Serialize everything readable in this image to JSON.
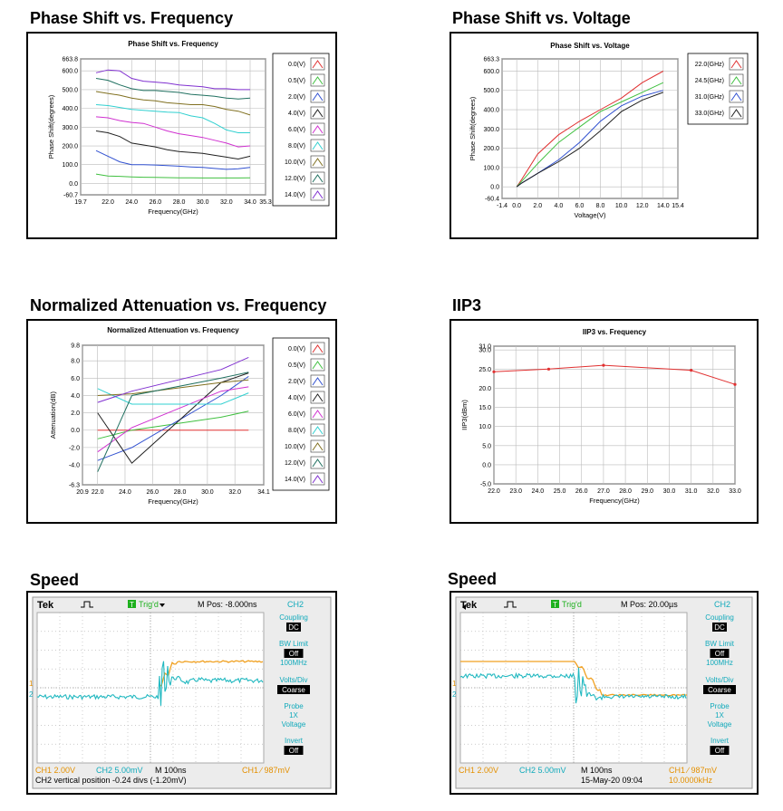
{
  "sections": {
    "phase_freq_title": "Phase Shift vs. Frequency",
    "phase_volt_title": "Phase Shift vs. Voltage",
    "atten_title": "Normalized Attenuation vs. Frequency",
    "iip3_title": "IIP3",
    "speed1_title": "Speed",
    "speed2_title": "Speed"
  },
  "chart_data": [
    {
      "id": "phase_freq",
      "type": "line",
      "title": "Phase Shift vs. Frequency",
      "xlabel": "Frequency(GHz)",
      "ylabel": "Phase Shift(degrees)",
      "xlim": [
        19.7,
        35.3
      ],
      "ylim": [
        -60.7,
        663.8
      ],
      "xticks": [
        "19.7",
        "22.0",
        "24.0",
        "26.0",
        "28.0",
        "30.0",
        "32.0",
        "34.0",
        "35.3"
      ],
      "yticks": [
        "663.8",
        "600.0",
        "500.0",
        "400.0",
        "300.0",
        "200.0",
        "100.0",
        "0.0",
        "-60.7"
      ],
      "xtick_vals": [
        19.7,
        22,
        24,
        26,
        28,
        30,
        32,
        34,
        35.3
      ],
      "ytick_vals": [
        663.8,
        600,
        500,
        400,
        300,
        200,
        100,
        0,
        -60.7
      ],
      "legend": "right",
      "x": [
        21,
        22,
        23,
        24,
        25,
        26,
        27,
        28,
        29,
        30,
        31,
        32,
        33,
        34
      ],
      "series": [
        {
          "name": "0.0(V)",
          "color": "#e03030",
          "values": [
            null,
            null,
            null,
            null,
            null,
            null,
            null,
            null,
            null,
            null,
            null,
            null,
            null,
            null
          ]
        },
        {
          "name": "0.5(V)",
          "color": "#40c040",
          "values": [
            50,
            40,
            38,
            35,
            33,
            32,
            31,
            30,
            30,
            29,
            29,
            29,
            29,
            30
          ]
        },
        {
          "name": "2.0(V)",
          "color": "#3050d0",
          "values": [
            175,
            145,
            115,
            100,
            100,
            98,
            95,
            92,
            88,
            85,
            80,
            75,
            78,
            85
          ]
        },
        {
          "name": "4.0(V)",
          "color": "#202020",
          "values": [
            280,
            270,
            250,
            215,
            205,
            195,
            180,
            170,
            165,
            160,
            150,
            140,
            130,
            145
          ]
        },
        {
          "name": "6.0(V)",
          "color": "#d030d0",
          "values": [
            355,
            350,
            335,
            325,
            320,
            300,
            280,
            265,
            255,
            245,
            230,
            215,
            195,
            200
          ]
        },
        {
          "name": "8.0(V)",
          "color": "#30d0d0",
          "values": [
            420,
            415,
            405,
            395,
            390,
            385,
            380,
            378,
            360,
            350,
            320,
            285,
            270,
            270
          ]
        },
        {
          "name": "10.0(V)",
          "color": "#807020",
          "values": [
            490,
            480,
            470,
            455,
            445,
            440,
            430,
            425,
            420,
            420,
            410,
            395,
            385,
            365
          ]
        },
        {
          "name": "12.0(V)",
          "color": "#207060",
          "values": [
            560,
            550,
            525,
            505,
            495,
            495,
            490,
            485,
            475,
            470,
            465,
            455,
            450,
            455
          ]
        },
        {
          "name": "14.0(V)",
          "color": "#8030d0",
          "values": [
            590,
            605,
            600,
            560,
            545,
            540,
            535,
            525,
            520,
            515,
            505,
            505,
            500,
            500
          ]
        }
      ]
    },
    {
      "id": "phase_volt",
      "type": "line",
      "title": "Phase Shift vs. Voltage",
      "xlabel": "Voltage(V)",
      "ylabel": "Phase Shift(degrees)",
      "xlim": [
        -1.4,
        15.4
      ],
      "ylim": [
        -60.4,
        663.3
      ],
      "xticks": [
        "-1.4",
        "0.0",
        "2.0",
        "4.0",
        "6.0",
        "8.0",
        "10.0",
        "12.0",
        "14.0",
        "15.4"
      ],
      "yticks": [
        "663.3",
        "600.0",
        "500.0",
        "400.0",
        "300.0",
        "200.0",
        "100.0",
        "0.0",
        "-60.4"
      ],
      "xtick_vals": [
        -1.4,
        0,
        2,
        4,
        6,
        8,
        10,
        12,
        14,
        15.4
      ],
      "ytick_vals": [
        663.3,
        600,
        500,
        400,
        300,
        200,
        100,
        0,
        -60.4
      ],
      "legend": "right",
      "x": [
        0,
        0.5,
        2,
        4,
        6,
        8,
        10,
        12,
        14
      ],
      "series": [
        {
          "name": "22.0(GHz)",
          "color": "#e03030",
          "values": [
            0,
            40,
            170,
            270,
            340,
            400,
            460,
            540,
            600
          ]
        },
        {
          "name": "24.5(GHz)",
          "color": "#40c040",
          "values": [
            0,
            30,
            120,
            230,
            310,
            390,
            440,
            490,
            540
          ]
        },
        {
          "name": "31.0(GHz)",
          "color": "#3050d0",
          "values": [
            0,
            20,
            70,
            140,
            230,
            340,
            420,
            470,
            500
          ]
        },
        {
          "name": "33.0(GHz)",
          "color": "#202020",
          "values": [
            0,
            20,
            70,
            130,
            200,
            290,
            390,
            450,
            490
          ]
        }
      ]
    },
    {
      "id": "atten",
      "type": "line",
      "title": "Normalized Attenuation vs. Frequency",
      "xlabel": "Frequency(GHz)",
      "ylabel": "Attenuation(dB)",
      "xlim": [
        20.9,
        34.1
      ],
      "ylim": [
        -6.3,
        9.8
      ],
      "xticks": [
        "20.9",
        "22.0",
        "24.0",
        "26.0",
        "28.0",
        "30.0",
        "32.0",
        "34.1"
      ],
      "yticks": [
        "9.8",
        "8.0",
        "6.0",
        "4.0",
        "2.0",
        "0.0",
        "-2.0",
        "-4.0",
        "-6.3"
      ],
      "xtick_vals": [
        20.9,
        22,
        24,
        26,
        28,
        30,
        32,
        34.1
      ],
      "ytick_vals": [
        9.8,
        8,
        6,
        4,
        2,
        0,
        -2,
        -4,
        -6.3
      ],
      "legend": "right",
      "x": [
        22,
        24.5,
        31,
        33
      ],
      "series": [
        {
          "name": "0.0(V)",
          "color": "#e03030",
          "values": [
            0,
            0,
            0,
            0
          ]
        },
        {
          "name": "0.5(V)",
          "color": "#40c040",
          "values": [
            -1,
            0,
            1.5,
            2.2
          ]
        },
        {
          "name": "2.0(V)",
          "color": "#3050d0",
          "values": [
            -3.5,
            -2,
            4,
            6.2
          ]
        },
        {
          "name": "4.0(V)",
          "color": "#202020",
          "values": [
            2,
            -3.8,
            5.5,
            6.6
          ]
        },
        {
          "name": "6.0(V)",
          "color": "#d030d0",
          "values": [
            -2.5,
            0.3,
            4.5,
            5
          ]
        },
        {
          "name": "8.0(V)",
          "color": "#30d0d0",
          "values": [
            4.8,
            3,
            3,
            4.3
          ]
        },
        {
          "name": "10.0(V)",
          "color": "#807020",
          "values": [
            4,
            4.2,
            5.5,
            5.8
          ]
        },
        {
          "name": "12.0(V)",
          "color": "#207060",
          "values": [
            -4.8,
            4,
            6,
            6.7
          ]
        },
        {
          "name": "14.0(V)",
          "color": "#8030d0",
          "values": [
            3.2,
            4.5,
            7,
            8.4
          ]
        }
      ]
    },
    {
      "id": "iip3",
      "type": "line",
      "title": "IIP3 vs. Frequency",
      "xlabel": "Frequency(GHz)",
      "ylabel": "IIP3(dBm)",
      "xlim": [
        22.0,
        33.0
      ],
      "ylim": [
        -5.0,
        31.0
      ],
      "xticks": [
        "22.0",
        "23.0",
        "24.0",
        "25.0",
        "26.0",
        "27.0",
        "28.0",
        "29.0",
        "30.0",
        "31.0",
        "32.0",
        "33.0"
      ],
      "yticks": [
        "31.0",
        "30.0",
        "25.0",
        "20.0",
        "15.0",
        "10.0",
        "5.0",
        "0.0",
        "-5.0"
      ],
      "xtick_vals": [
        22,
        23,
        24,
        25,
        26,
        27,
        28,
        29,
        30,
        31,
        32,
        33
      ],
      "ytick_vals": [
        31,
        30,
        25,
        20,
        15,
        10,
        5,
        0,
        -5
      ],
      "x": [
        22,
        24.5,
        27,
        31,
        33
      ],
      "series": [
        {
          "name": "",
          "color": "#e03030",
          "values": [
            24.3,
            25.0,
            26.0,
            24.7,
            21.0
          ]
        }
      ]
    }
  ],
  "scope1": {
    "brand": "Tek",
    "trig": "Trig'd",
    "trig_badge": "T",
    "mpos": "M Pos: -8.000ns",
    "channel": "CH2",
    "menu": [
      {
        "label": "Coupling",
        "value": "DC"
      },
      {
        "label": "BW Limit",
        "value": "Off",
        "sub": "100MHz"
      },
      {
        "label": "Volts/Div",
        "value": "Coarse"
      },
      {
        "label": "Probe",
        "sub": "1X\nVoltage"
      },
      {
        "label": "Invert",
        "value": "Off"
      }
    ],
    "probe_1x": "1X",
    "probe_voltage": "Voltage",
    "ch1": "CH1  2.00V",
    "ch2": "CH2  5.00mV",
    "time": "M 100ns",
    "trig_ch": "CH1 ∕ 987mV",
    "footer": "CH2 vertical position -0.24 divs (-1.20mV)",
    "marker1": "1",
    "marker2": "2"
  },
  "scope2": {
    "brand": "Tek",
    "trig": "Trig'd",
    "trig_badge": "T",
    "mpos": "M Pos: 20.00µs",
    "channel": "CH2",
    "menu": [
      {
        "label": "Coupling",
        "value": "DC"
      },
      {
        "label": "BW Limit",
        "value": "Off",
        "sub": "100MHz"
      },
      {
        "label": "Volts/Div",
        "value": "Coarse"
      },
      {
        "label": "Probe",
        "sub": "1X\nVoltage"
      },
      {
        "label": "Invert",
        "value": "Off"
      }
    ],
    "probe_1x": "1X",
    "probe_voltage": "Voltage",
    "ch1": "CH1  2.00V",
    "ch2": "CH2  5.00mV",
    "time": "M 100ns",
    "trig_ch": "CH1 ∕ 987mV",
    "date": "15-May-20 09:04",
    "freq": "10.0000kHz",
    "marker1": "1",
    "marker2": "2"
  }
}
